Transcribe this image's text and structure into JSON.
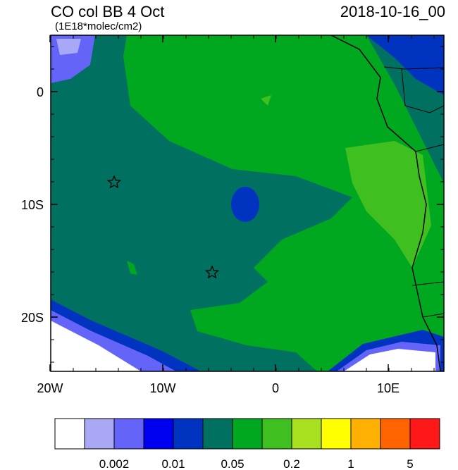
{
  "map": {
    "title": "CO col BB 4 Oct",
    "subtitle": "(1E18*molec/cm2)",
    "date": "2018-10-16_00",
    "lat_ticks": [
      {
        "value": 0,
        "label": "0"
      },
      {
        "value": -10,
        "label": "10S"
      },
      {
        "value": -20,
        "label": "20S"
      }
    ],
    "lon_ticks": [
      {
        "value": -20,
        "label": "20W"
      },
      {
        "value": -10,
        "label": "10W"
      },
      {
        "value": 0,
        "label": "0"
      },
      {
        "value": 10,
        "label": "10E"
      }
    ],
    "colorbar": {
      "colors": [
        "#ffffff",
        "#a8a8f4",
        "#6464f8",
        "#0000f0",
        "#0034c0",
        "#007060",
        "#00a820",
        "#40c020",
        "#a8e020",
        "#ffff00",
        "#ffb000",
        "#ff6400",
        "#ff1818"
      ],
      "labels": [
        0.002,
        0.01,
        0.05,
        0.2,
        1,
        5
      ]
    }
  }
}
